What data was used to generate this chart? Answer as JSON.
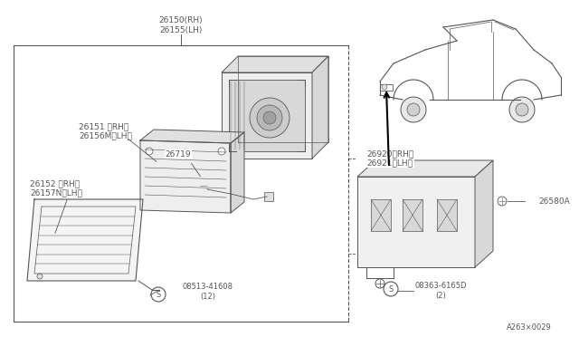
{
  "bg_color": "#ffffff",
  "line_color": "#555555",
  "fig_width": 6.4,
  "fig_height": 3.72,
  "dpi": 100,
  "parts": {
    "box_label_top": "26150(RH)\n26155(LH)",
    "part_26151": "26151 〈RH〉\n26156M〈LH〉",
    "part_26152": "26152 〈RH〉\n26157N〈LH〉",
    "part_26719": "26719",
    "part_screw1": "®08513-41608\n（12）",
    "part_26920": "26920〈RH〉\n26921〈LH〉",
    "part_26580": "26580A",
    "part_screw2": "®08363-6165D\n（2）",
    "diagram_ref": "A263×0029"
  }
}
